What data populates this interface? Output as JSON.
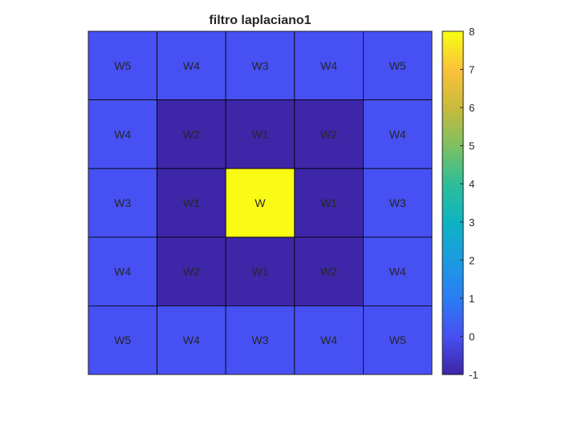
{
  "chart_data": {
    "type": "heatmap",
    "title": "filtro laplaciano1",
    "xlabel": "",
    "ylabel": "",
    "rows": 5,
    "cols": 5,
    "cell_labels": [
      [
        "W5",
        "W4",
        "W3",
        "W4",
        "W5"
      ],
      [
        "W4",
        "W2",
        "W1",
        "W2",
        "W4"
      ],
      [
        "W3",
        "W1",
        "W",
        "W1",
        "W3"
      ],
      [
        "W4",
        "W2",
        "W1",
        "W2",
        "W4"
      ],
      [
        "W5",
        "W4",
        "W3",
        "W4",
        "W5"
      ]
    ],
    "values": [
      [
        0,
        0,
        0,
        0,
        0
      ],
      [
        0,
        -1,
        -1,
        -1,
        0
      ],
      [
        0,
        -1,
        8,
        -1,
        0
      ],
      [
        0,
        -1,
        -1,
        -1,
        0
      ],
      [
        0,
        0,
        0,
        0,
        0
      ]
    ],
    "colorbar": {
      "colormap": "parula",
      "range": [
        -1,
        8
      ],
      "ticks": [
        "-1",
        "0",
        "1",
        "2",
        "3",
        "4",
        "5",
        "6",
        "7",
        "8"
      ],
      "placement": "right"
    },
    "grid": true,
    "legend": "none"
  }
}
